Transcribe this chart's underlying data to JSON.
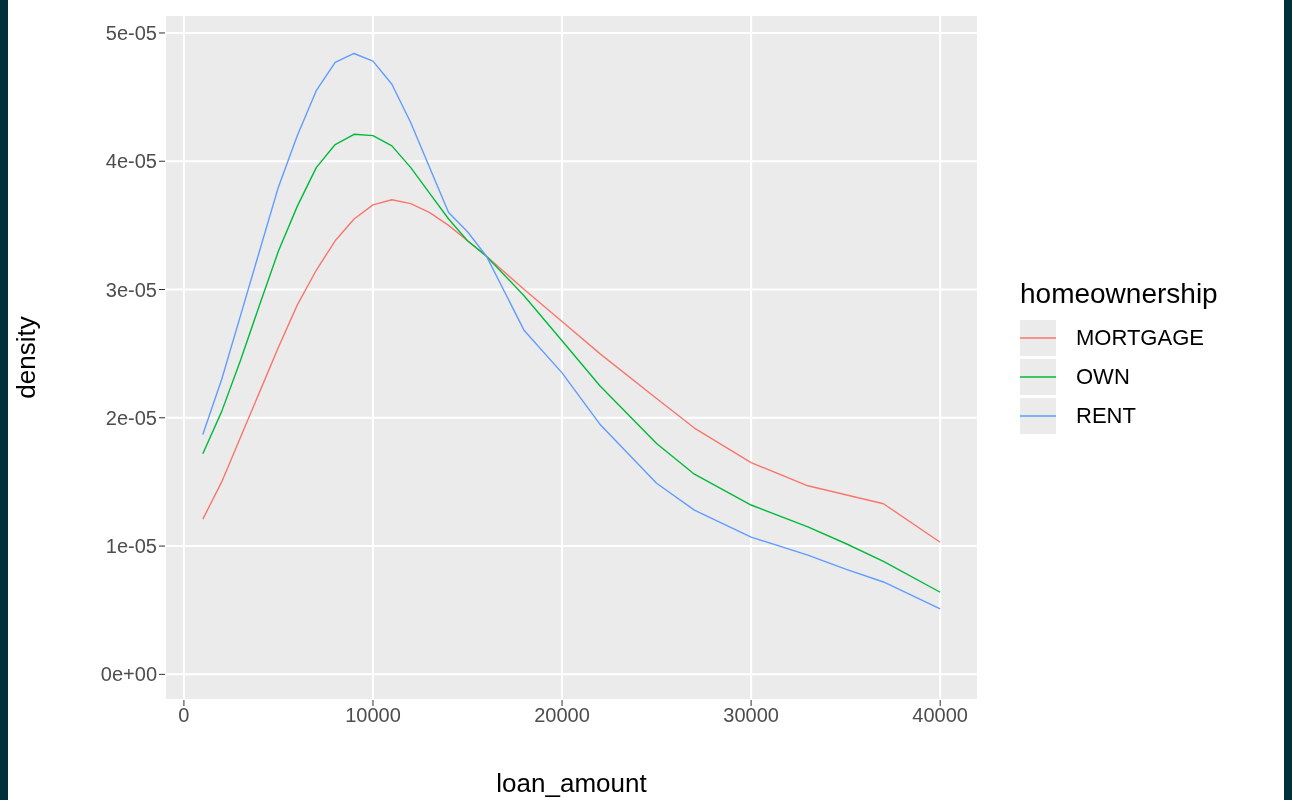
{
  "chart_data": {
    "type": "line",
    "xlabel": "loan_amount",
    "ylabel": "density",
    "legend_title": "homeownership",
    "x": [
      1000,
      2000,
      3000,
      4000,
      5000,
      6000,
      7000,
      8000,
      9000,
      10000,
      11000,
      12000,
      13000,
      14000,
      15000,
      16000,
      18000,
      20000,
      22000,
      25000,
      27000,
      30000,
      33000,
      35000,
      37000,
      40000
    ],
    "series": [
      {
        "name": "MORTGAGE",
        "color": "#f8766d",
        "values": [
          1.21e-05,
          1.5e-05,
          1.85e-05,
          2.2e-05,
          2.55e-05,
          2.88e-05,
          3.15e-05,
          3.38e-05,
          3.55e-05,
          3.66e-05,
          3.7e-05,
          3.67e-05,
          3.6e-05,
          3.5e-05,
          3.38e-05,
          3.26e-05,
          3e-05,
          2.75e-05,
          2.5e-05,
          2.15e-05,
          1.92e-05,
          1.65e-05,
          1.47e-05,
          1.4e-05,
          1.33e-05,
          1.03e-05
        ]
      },
      {
        "name": "OWN",
        "color": "#00ba38",
        "values": [
          1.72e-05,
          2.05e-05,
          2.45e-05,
          2.88e-05,
          3.3e-05,
          3.65e-05,
          3.95e-05,
          4.13e-05,
          4.21e-05,
          4.2e-05,
          4.12e-05,
          3.95e-05,
          3.75e-05,
          3.55e-05,
          3.38e-05,
          3.26e-05,
          2.95e-05,
          2.6e-05,
          2.25e-05,
          1.8e-05,
          1.56e-05,
          1.32e-05,
          1.15e-05,
          1.02e-05,
          8.8e-06,
          6.4e-06
        ]
      },
      {
        "name": "RENT",
        "color": "#619cff",
        "values": [
          1.87e-05,
          2.3e-05,
          2.8e-05,
          3.3e-05,
          3.8e-05,
          4.2e-05,
          4.55e-05,
          4.77e-05,
          4.84e-05,
          4.78e-05,
          4.6e-05,
          4.3e-05,
          3.95e-05,
          3.6e-05,
          3.45e-05,
          3.26e-05,
          2.68e-05,
          2.35e-05,
          1.95e-05,
          1.49e-05,
          1.28e-05,
          1.07e-05,
          9.3e-06,
          8.2e-06,
          7.2e-06,
          5.1e-06
        ]
      }
    ],
    "xlim": [
      -1000,
      42000
    ],
    "xticks": [
      0,
      10000,
      20000,
      30000,
      40000
    ],
    "ylim": [
      -2e-06,
      5.14e-05
    ],
    "yticks": [
      {
        "value": 0,
        "label": "0e+00"
      },
      {
        "value": 1e-05,
        "label": "1e-05"
      },
      {
        "value": 2e-05,
        "label": "2e-05"
      },
      {
        "value": 3e-05,
        "label": "3e-05"
      },
      {
        "value": 4e-05,
        "label": "4e-05"
      },
      {
        "value": 5e-05,
        "label": "5e-05"
      }
    ],
    "grid": true,
    "legend": "right",
    "marker": "none",
    "line_style": "solid"
  }
}
